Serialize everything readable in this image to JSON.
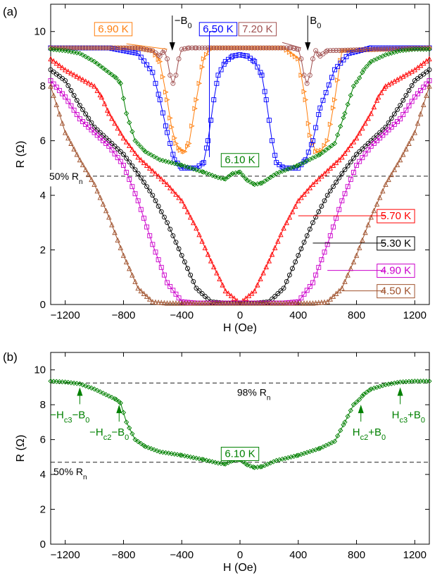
{
  "panels": {
    "a_label": "(a)",
    "b_label": "(b)"
  },
  "chart_data": [
    {
      "panel": "(a)",
      "type": "line",
      "xlabel": "H (Oe)",
      "ylabel": "R (Ω)",
      "xlim": [
        -1300,
        1300
      ],
      "ylim": [
        0,
        11
      ],
      "xticks": [
        -1200,
        -800,
        -400,
        0,
        400,
        800,
        1200
      ],
      "xtick_labels": [
        "−1200",
        "−800",
        "−400",
        "0",
        "400",
        "800",
        "1200"
      ],
      "yticks": [
        0,
        2,
        4,
        6,
        8,
        10
      ],
      "ytick_labels": [
        "0",
        "2",
        "4",
        "6",
        "8",
        "10"
      ],
      "grid": false,
      "reference_lines": [
        {
          "y": 4.7,
          "label_main": "50% R",
          "label_sub": "n",
          "style": "dashed"
        }
      ],
      "annotations": [
        {
          "text_main": "−B",
          "text_sub": "0",
          "x": -465
        },
        {
          "text_main": "B",
          "text_sub": "0",
          "x": 465
        }
      ],
      "series": [
        {
          "name": "6.90 K",
          "color": "#ff7f0e",
          "marker": "triangle-right",
          "label_x": -870,
          "label_y": 10.1,
          "x": [
            -1300,
            -700,
            -600,
            -550,
            -500,
            -470,
            -440,
            -410,
            -380,
            -350,
            -300,
            -250,
            -200,
            300,
            400,
            450,
            480,
            520,
            560,
            600,
            650,
            700,
            1300
          ],
          "y": [
            9.4,
            9.4,
            9.3,
            8.9,
            7.5,
            6.5,
            5.9,
            5.65,
            5.6,
            5.9,
            7.5,
            9.0,
            9.4,
            9.4,
            9.0,
            7.5,
            6.2,
            5.6,
            5.65,
            6.0,
            7.5,
            9.3,
            9.4
          ]
        },
        {
          "name": "6.50 K",
          "color": "#0000ff",
          "marker": "square",
          "label_x": -150,
          "label_y": 10.1,
          "x": [
            -1300,
            -900,
            -700,
            -600,
            -550,
            -500,
            -450,
            -400,
            -300,
            -250,
            -220,
            -180,
            -150,
            -100,
            -50,
            0,
            50,
            100,
            150,
            180,
            220,
            250,
            300,
            400,
            450,
            500,
            550,
            650,
            750,
            900,
            1300
          ],
          "y": [
            9.4,
            9.4,
            9.2,
            8.5,
            7.5,
            6.3,
            5.3,
            5.0,
            5.0,
            5.2,
            6.0,
            7.5,
            8.4,
            8.9,
            9.1,
            9.15,
            9.1,
            8.9,
            8.4,
            7.5,
            6.0,
            5.2,
            5.0,
            5.0,
            5.3,
            6.0,
            7.2,
            8.6,
            9.2,
            9.4,
            9.4
          ]
        },
        {
          "name": "7.20 K",
          "color": "#a05050",
          "marker": "circle",
          "label_x": 120,
          "label_y": 10.1,
          "x": [
            -1300,
            -700,
            -600,
            -550,
            -520,
            -500,
            -480,
            -460,
            -440,
            -420,
            -400,
            -350,
            -300,
            300,
            350,
            400,
            420,
            440,
            460,
            480,
            500,
            520,
            550,
            600,
            1300
          ],
          "y": [
            9.4,
            9.4,
            9.3,
            9.1,
            9.3,
            9.0,
            8.4,
            8.1,
            8.4,
            9.0,
            9.35,
            9.4,
            9.4,
            9.4,
            9.4,
            9.35,
            9.0,
            8.4,
            8.1,
            8.4,
            9.0,
            9.3,
            9.1,
            9.3,
            9.4
          ]
        },
        {
          "name": "6.10 K",
          "color": "#008000",
          "marker": "diamond",
          "label_x": 0,
          "label_y": 5.3,
          "x": [
            -1300,
            -1200,
            -1100,
            -1000,
            -900,
            -850,
            -820,
            -780,
            -720,
            -650,
            -550,
            -400,
            -250,
            -150,
            -100,
            -50,
            0,
            50,
            100,
            150,
            250,
            400,
            550,
            650,
            720,
            780,
            820,
            850,
            900,
            1000,
            1100,
            1200,
            1300
          ],
          "y": [
            9.35,
            9.3,
            9.2,
            8.9,
            8.5,
            8.3,
            8.1,
            7.0,
            6.0,
            5.6,
            5.3,
            5.1,
            4.85,
            4.65,
            4.6,
            4.8,
            4.85,
            4.55,
            4.4,
            4.45,
            4.8,
            5.1,
            5.5,
            5.9,
            7.0,
            8.0,
            8.3,
            8.6,
            8.9,
            9.15,
            9.3,
            9.35,
            9.35
          ]
        },
        {
          "name": "5.70 K",
          "color": "#ff0000",
          "marker": "triangle-up",
          "label_x": 1070,
          "label_y": 3.25,
          "x": [
            -1300,
            -1200,
            -1100,
            -1000,
            -950,
            -900,
            -800,
            -700,
            -600,
            -500,
            -400,
            -300,
            -200,
            -100,
            0,
            100,
            200,
            300,
            400,
            500,
            600,
            700,
            800,
            900,
            950,
            1000,
            1100,
            1200,
            1300
          ],
          "y": [
            9.0,
            8.6,
            8.3,
            8.0,
            7.6,
            7.0,
            6.1,
            5.4,
            4.9,
            4.4,
            3.8,
            2.8,
            1.6,
            0.5,
            0.05,
            0.5,
            1.6,
            2.8,
            3.8,
            4.4,
            4.9,
            5.4,
            6.1,
            7.0,
            7.6,
            8.0,
            8.3,
            8.6,
            9.0
          ]
        },
        {
          "name": "5.30 K",
          "color": "#000000",
          "marker": "circle",
          "label_x": 1070,
          "label_y": 2.25,
          "x": [
            -1300,
            -1200,
            -1100,
            -1000,
            -900,
            -800,
            -700,
            -600,
            -500,
            -400,
            -300,
            -200,
            -100,
            0,
            100,
            200,
            300,
            400,
            500,
            600,
            700,
            800,
            900,
            1000,
            1100,
            1200,
            1300
          ],
          "y": [
            8.6,
            8.2,
            7.3,
            6.5,
            6.0,
            5.5,
            4.8,
            4.0,
            3.0,
            1.8,
            0.6,
            0.1,
            0.05,
            0.05,
            0.05,
            0.1,
            0.6,
            1.8,
            3.0,
            4.0,
            4.8,
            5.5,
            6.0,
            6.5,
            7.3,
            8.2,
            8.6
          ]
        },
        {
          "name": "4.90 K",
          "color": "#cc00cc",
          "marker": "square",
          "label_x": 1070,
          "label_y": 1.25,
          "x": [
            -1300,
            -1200,
            -1100,
            -1000,
            -900,
            -800,
            -700,
            -600,
            -500,
            -400,
            -300,
            -200,
            0,
            200,
            300,
            400,
            500,
            600,
            700,
            800,
            900,
            1000,
            1100,
            1200,
            1300
          ],
          "y": [
            8.2,
            7.6,
            6.8,
            6.3,
            5.8,
            5.1,
            3.8,
            2.2,
            0.8,
            0.1,
            0.05,
            0.05,
            0.05,
            0.05,
            0.05,
            0.1,
            0.8,
            2.2,
            3.8,
            5.1,
            5.8,
            6.3,
            6.8,
            7.6,
            8.2
          ]
        },
        {
          "name": "4.50 K",
          "color": "#a0522d",
          "marker": "triangle-up",
          "label_x": 1070,
          "label_y": 0.5,
          "x": [
            -1300,
            -1200,
            -1100,
            -1000,
            -900,
            -800,
            -700,
            -600,
            -500,
            -400,
            -200,
            0,
            200,
            400,
            500,
            600,
            700,
            800,
            900,
            1000,
            1100,
            1200,
            1300
          ],
          "y": [
            8.0,
            6.3,
            5.3,
            4.4,
            3.2,
            1.8,
            0.6,
            0.1,
            0.05,
            0.05,
            0.05,
            0.05,
            0.05,
            0.05,
            0.05,
            0.1,
            0.6,
            1.8,
            3.2,
            4.4,
            5.3,
            6.3,
            8.0
          ]
        }
      ]
    },
    {
      "panel": "(b)",
      "type": "line",
      "xlabel": "H (Oe)",
      "ylabel": "R (Ω)",
      "xlim": [
        -1300,
        1300
      ],
      "ylim": [
        0,
        11
      ],
      "xticks": [
        -1200,
        -800,
        -400,
        0,
        400,
        800,
        1200
      ],
      "xtick_labels": [
        "−1200",
        "−800",
        "−400",
        "0",
        "400",
        "800",
        "1200"
      ],
      "yticks": [
        0,
        2,
        4,
        6,
        8,
        10
      ],
      "ytick_labels": [
        "0",
        "2",
        "4",
        "6",
        "8",
        "10"
      ],
      "grid": false,
      "reference_lines": [
        {
          "y": 9.25,
          "label_main": "98% R",
          "label_sub": "n",
          "style": "dashed"
        },
        {
          "y": 4.7,
          "label_main": "50% R",
          "label_sub": "n",
          "style": "dashed"
        }
      ],
      "annotations": [
        {
          "main": "−H",
          "sub": "c3",
          "tail": "−B",
          "tail_sub": "0",
          "x": -1100,
          "y": 9.0
        },
        {
          "main": "−H",
          "sub": "c2",
          "tail": "−B",
          "tail_sub": "0",
          "x": -830,
          "y": 8.0
        },
        {
          "main": "H",
          "sub": "c2",
          "tail": "+B",
          "tail_sub": "0",
          "x": 830,
          "y": 8.0
        },
        {
          "main": "H",
          "sub": "c3",
          "tail": "+B",
          "tail_sub": "0",
          "x": 1100,
          "y": 9.0
        }
      ],
      "series": [
        {
          "name": "6.10 K",
          "color": "#008000",
          "marker": "diamond",
          "label_x": 0,
          "label_y": 5.2,
          "x": [
            -1300,
            -1200,
            -1100,
            -1000,
            -900,
            -850,
            -820,
            -780,
            -720,
            -650,
            -550,
            -400,
            -250,
            -150,
            -100,
            -50,
            0,
            50,
            100,
            150,
            250,
            400,
            550,
            650,
            720,
            780,
            820,
            850,
            900,
            1000,
            1100,
            1200,
            1300
          ],
          "y": [
            9.35,
            9.3,
            9.2,
            8.9,
            8.5,
            8.3,
            8.1,
            7.0,
            6.0,
            5.6,
            5.3,
            5.1,
            4.85,
            4.65,
            4.6,
            4.8,
            4.85,
            4.55,
            4.4,
            4.45,
            4.8,
            5.1,
            5.5,
            5.9,
            7.0,
            8.0,
            8.3,
            8.6,
            8.9,
            9.15,
            9.3,
            9.35,
            9.35
          ]
        }
      ]
    }
  ]
}
